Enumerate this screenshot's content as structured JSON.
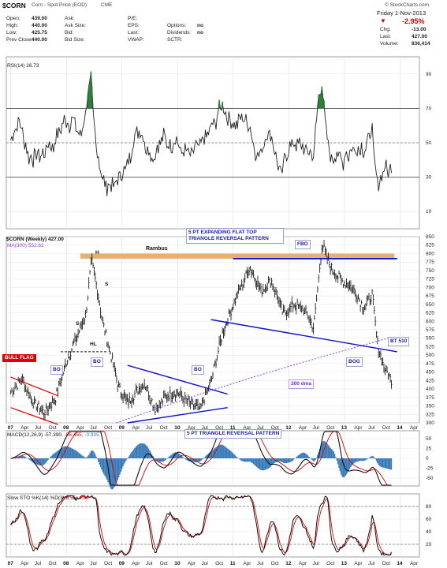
{
  "header": {
    "symbol_title": "$CORN",
    "symbol_subtitle": "Corn - Spot Price (EOD)",
    "exchange": "CME",
    "watermark": "© StockCharts.com",
    "date": "Friday   1-Nov-2013",
    "change_pct": "-2.95%",
    "down_arrow": "▼",
    "fields": [
      {
        "label": "Open:",
        "value": "439.00"
      },
      {
        "label": "High:",
        "value": "440.00"
      },
      {
        "label": "Low:",
        "value": "425.75"
      },
      {
        "label": "Prev Close:",
        "value": "440.00"
      }
    ],
    "fields2": [
      {
        "label": "Ask:",
        "value": ""
      },
      {
        "label": "Ask Size:",
        "value": ""
      },
      {
        "label": "Bid:",
        "value": ""
      },
      {
        "label": "Bid Size:",
        "value": ""
      }
    ],
    "fields3": [
      {
        "label": "P/E:",
        "value": ""
      },
      {
        "label": "EPS:",
        "value": ""
      },
      {
        "label": "Last:",
        "value": ""
      },
      {
        "label": "VWAP:",
        "value": ""
      }
    ],
    "fields4": [
      {
        "label": "",
        "value": ""
      },
      {
        "label": "Options:",
        "value": "no"
      },
      {
        "label": "Dividends:",
        "value": "no"
      },
      {
        "label": "SCTR:",
        "value": ""
      }
    ],
    "right_fields": [
      {
        "label": "Chg:",
        "value": "-13.00"
      },
      {
        "label": "Last:",
        "value": "427.00"
      },
      {
        "label": "Volume:",
        "value": "836,414"
      }
    ]
  },
  "colors": {
    "price_bars": "#222222",
    "trendline": "#1010d0",
    "red_line": "#e00000",
    "resistance_band": "#e8b070",
    "ma_line": "#8b3fd9",
    "rsi_fill": "#2e7a3a",
    "macd_hist": "#3b7bb8"
  },
  "chart_data": {
    "type": "line",
    "title": "$CORN (Weekly) 427.00",
    "x_years": [
      "07",
      "08",
      "09",
      "10",
      "11",
      "12",
      "13",
      "14"
    ],
    "x_months": [
      "Apr",
      "Jul",
      "Oct"
    ],
    "price_panel": {
      "ylim": [
        300,
        850
      ],
      "yticks": [
        300,
        325,
        350,
        375,
        400,
        425,
        450,
        475,
        500,
        525,
        550,
        575,
        600,
        625,
        650,
        675,
        700,
        725,
        750,
        775,
        800,
        825,
        850
      ],
      "ma_legend": "MA(300) 552.62",
      "series_approx": [
        {
          "t": 2007.0,
          "v": 390
        },
        {
          "t": 2007.2,
          "v": 430
        },
        {
          "t": 2007.4,
          "v": 360
        },
        {
          "t": 2007.6,
          "v": 330
        },
        {
          "t": 2007.8,
          "v": 370
        },
        {
          "t": 2008.0,
          "v": 480
        },
        {
          "t": 2008.2,
          "v": 560
        },
        {
          "t": 2008.35,
          "v": 620
        },
        {
          "t": 2008.45,
          "v": 780
        },
        {
          "t": 2008.55,
          "v": 700
        },
        {
          "t": 2008.65,
          "v": 600
        },
        {
          "t": 2008.8,
          "v": 500
        },
        {
          "t": 2008.95,
          "v": 400
        },
        {
          "t": 2009.1,
          "v": 360
        },
        {
          "t": 2009.4,
          "v": 420
        },
        {
          "t": 2009.6,
          "v": 340
        },
        {
          "t": 2009.8,
          "v": 380
        },
        {
          "t": 2010.0,
          "v": 390
        },
        {
          "t": 2010.2,
          "v": 360
        },
        {
          "t": 2010.4,
          "v": 340
        },
        {
          "t": 2010.6,
          "v": 420
        },
        {
          "t": 2010.8,
          "v": 560
        },
        {
          "t": 2011.0,
          "v": 650
        },
        {
          "t": 2011.3,
          "v": 760
        },
        {
          "t": 2011.5,
          "v": 690
        },
        {
          "t": 2011.7,
          "v": 720
        },
        {
          "t": 2011.9,
          "v": 620
        },
        {
          "t": 2012.1,
          "v": 650
        },
        {
          "t": 2012.3,
          "v": 630
        },
        {
          "t": 2012.45,
          "v": 580
        },
        {
          "t": 2012.6,
          "v": 830
        },
        {
          "t": 2012.75,
          "v": 760
        },
        {
          "t": 2012.95,
          "v": 720
        },
        {
          "t": 2013.15,
          "v": 700
        },
        {
          "t": 2013.35,
          "v": 640
        },
        {
          "t": 2013.5,
          "v": 680
        },
        {
          "t": 2013.6,
          "v": 530
        },
        {
          "t": 2013.7,
          "v": 470
        },
        {
          "t": 2013.84,
          "v": 427
        }
      ]
    },
    "rsi_panel": {
      "label": "RSI(14) 26.73",
      "ylim": [
        0,
        100
      ],
      "yticks": [
        10,
        30,
        50,
        70,
        90
      ]
    },
    "macd_panel": {
      "label_main": "MACD(12,26,9) -57.390,",
      "label_signal": "-56.455,",
      "label_hist": "-0.935",
      "yticks": [
        50,
        25,
        0,
        -25,
        -50
      ]
    },
    "sto_panel": {
      "label_main": "Slow STO %K(14) %D(3) 5.55,",
      "label_signal": "4.80",
      "yticks": [
        20,
        40,
        60,
        80
      ]
    }
  },
  "annotations": {
    "rambus": "Rambus",
    "flat_top": "5 PT EXPANDING FLAT TOP\nTRIANGLE REVERSAL PATTERN",
    "fbo": "FBO",
    "h": "H",
    "s1": "S",
    "s2": "S",
    "hl": "HL",
    "bull_flag": "BULL FLAG",
    "bo1": "BO",
    "bo2": "BO",
    "bo3": "BO",
    "triangle_reversal": "5 PT TRIANGLE REVERSAL PATTERN",
    "dma": "300 dma",
    "bt": "BT 510",
    "bog": "BOG"
  }
}
